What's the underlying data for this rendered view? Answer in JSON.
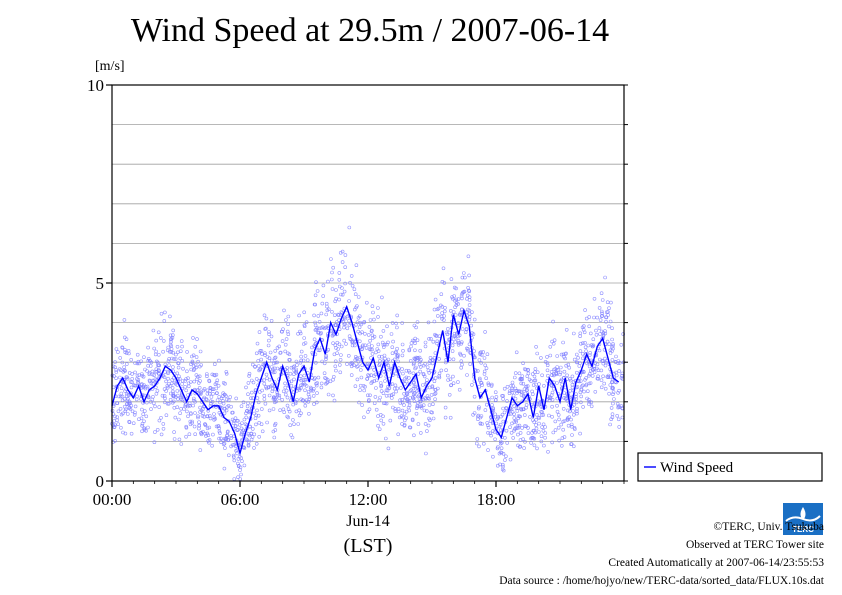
{
  "title": "Wind Speed at 29.5m / 2007-06-14",
  "chart_data": {
    "type": "scatter",
    "title": "Wind Speed at 29.5m / 2007-06-14",
    "ylabel": "[m/s]",
    "xlabel": "(LST)",
    "x_date_label": "Jun-14",
    "ylim": [
      0,
      10
    ],
    "xlim": [
      "00:00",
      "24:00"
    ],
    "x_ticks": [
      "00:00",
      "06:00",
      "12:00",
      "18:00"
    ],
    "y_ticks": [
      "0",
      "5",
      "10"
    ],
    "grid": true,
    "legend_position": "right",
    "series": [
      {
        "name": "Wind Speed",
        "color": "#0000ff",
        "x_hours": [
          0,
          0.25,
          0.5,
          0.75,
          1.0,
          1.25,
          1.5,
          1.75,
          2.0,
          2.25,
          2.5,
          2.75,
          3.0,
          3.25,
          3.5,
          3.75,
          4.0,
          4.25,
          4.5,
          4.75,
          5.0,
          5.25,
          5.5,
          5.75,
          6.0,
          6.25,
          6.5,
          6.75,
          7.0,
          7.25,
          7.5,
          7.75,
          8.0,
          8.25,
          8.5,
          8.75,
          9.0,
          9.25,
          9.5,
          9.75,
          10.0,
          10.25,
          10.5,
          10.75,
          11.0,
          11.25,
          11.5,
          11.75,
          12.0,
          12.25,
          12.5,
          12.75,
          13.0,
          13.25,
          13.5,
          13.75,
          14.0,
          14.25,
          14.5,
          14.75,
          15.0,
          15.25,
          15.5,
          15.75,
          16.0,
          16.25,
          16.5,
          16.75,
          17.0,
          17.25,
          17.5,
          17.75,
          18.0,
          18.25,
          18.5,
          18.75,
          19.0,
          19.25,
          19.5,
          19.75,
          20.0,
          20.25,
          20.5,
          20.75,
          21.0,
          21.25,
          21.5,
          21.75,
          22.0,
          22.25,
          22.5,
          22.75,
          23.0,
          23.25,
          23.5,
          23.75
        ],
        "values": [
          1.9,
          2.4,
          2.6,
          2.3,
          2.1,
          2.4,
          2.0,
          2.3,
          2.4,
          2.6,
          2.9,
          2.8,
          2.6,
          2.3,
          2.0,
          2.3,
          2.2,
          2.0,
          1.8,
          1.9,
          1.9,
          1.6,
          1.5,
          1.2,
          0.7,
          1.2,
          1.6,
          2.2,
          2.6,
          3.0,
          2.6,
          2.3,
          2.9,
          2.5,
          2.0,
          2.7,
          2.9,
          2.5,
          3.3,
          3.6,
          3.2,
          4.0,
          3.7,
          4.1,
          4.4,
          4.0,
          3.5,
          3.0,
          2.8,
          3.1,
          2.6,
          3.0,
          2.4,
          3.0,
          2.6,
          2.3,
          2.5,
          2.7,
          2.1,
          2.4,
          2.6,
          3.2,
          3.8,
          3.0,
          4.2,
          3.7,
          4.3,
          3.9,
          2.6,
          2.1,
          2.3,
          1.8,
          1.3,
          1.1,
          1.6,
          2.1,
          1.9,
          2.0,
          2.2,
          1.6,
          2.4,
          1.8,
          2.6,
          2.4,
          2.0,
          2.6,
          1.8,
          2.5,
          2.8,
          3.2,
          2.9,
          3.4,
          3.6,
          3.1,
          2.6,
          2.5
        ]
      }
    ]
  },
  "footer": {
    "copyright": "©TERC, Univ. Tsukuba",
    "site": "Observed at TERC Tower site",
    "created": "Created Automatically at 2007-06-14/23:55:53",
    "source": "Data source : /home/hojyo/new/TERC-data/sorted_data/FLUX.10s.dat"
  },
  "logo_text": "TERC"
}
